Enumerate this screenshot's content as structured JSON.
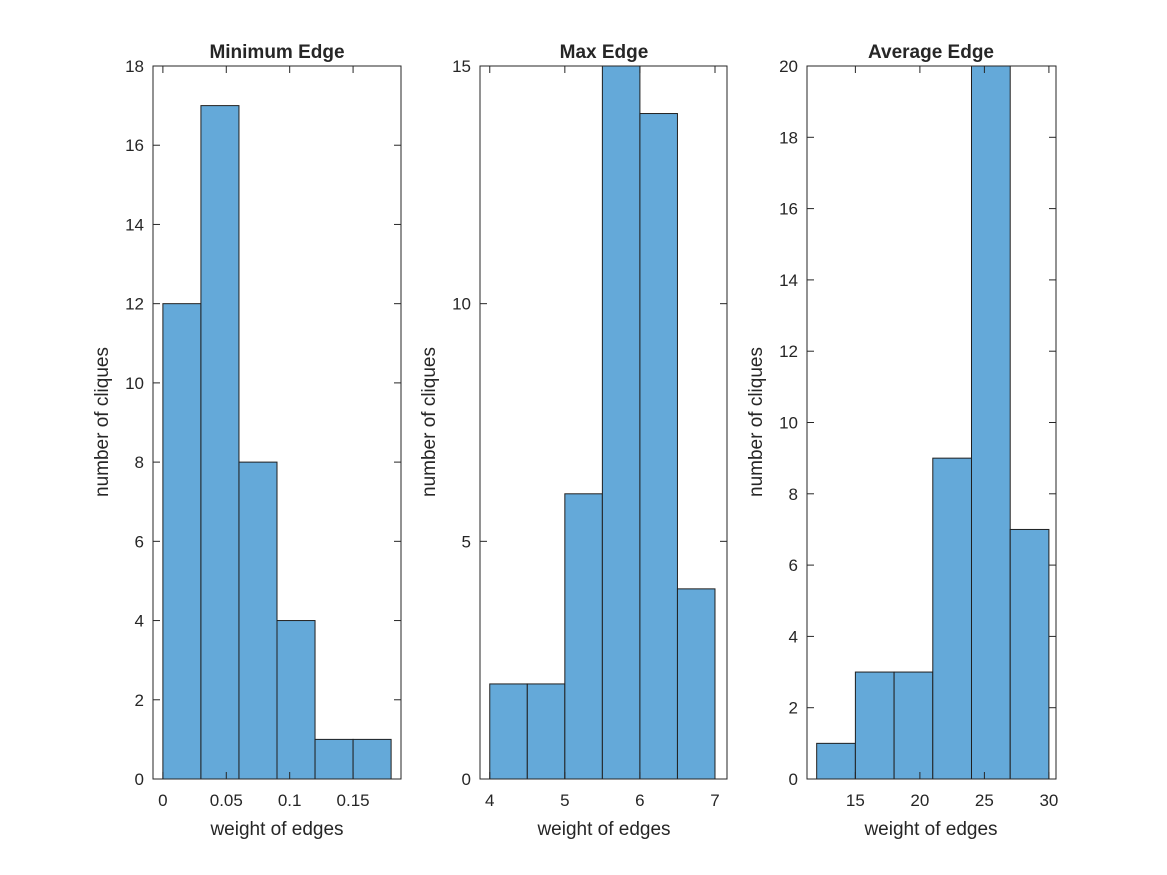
{
  "figure": {
    "background": "#ffffff"
  },
  "chart_data": [
    {
      "type": "bar",
      "title": "Minimum Edge",
      "xlabel": "weight of edges",
      "ylabel": "number of cliques",
      "bin_edges": [
        0,
        0.03,
        0.06,
        0.09,
        0.12,
        0.15,
        0.18
      ],
      "values": [
        12,
        17,
        8,
        4,
        1,
        1
      ],
      "xlim": [
        -0.0078,
        0.1878
      ],
      "ylim": [
        0,
        18
      ],
      "xticks": [
        0,
        0.05,
        0.1,
        0.15
      ],
      "xtick_labels": [
        "0",
        "0.05",
        "0.1",
        "0.15"
      ],
      "yticks": [
        0,
        2,
        4,
        6,
        8,
        10,
        12,
        14,
        16,
        18
      ],
      "ytick_labels": [
        "0",
        "2",
        "4",
        "6",
        "8",
        "10",
        "12",
        "14",
        "16",
        "18"
      ],
      "bar_color": "#64a9d9",
      "grid": false
    },
    {
      "type": "bar",
      "title": "Max Edge",
      "xlabel": "weight of edges",
      "ylabel": "number of cliques",
      "bin_edges": [
        4,
        4.5,
        5,
        5.5,
        6,
        6.5,
        7
      ],
      "values": [
        2,
        2,
        6,
        15,
        14,
        4
      ],
      "xlim": [
        3.87,
        7.16
      ],
      "ylim": [
        0,
        15
      ],
      "xticks": [
        4,
        5,
        6,
        7
      ],
      "xtick_labels": [
        "4",
        "5",
        "6",
        "7"
      ],
      "yticks": [
        0,
        5,
        10,
        15
      ],
      "ytick_labels": [
        "0",
        "5",
        "10",
        "15"
      ],
      "bar_color": "#64a9d9",
      "grid": false
    },
    {
      "type": "bar",
      "title": "Average Edge",
      "xlabel": "weight of edges",
      "ylabel": "number of cliques",
      "bin_edges": [
        12,
        15,
        18,
        21,
        24,
        27,
        30
      ],
      "values": [
        1,
        3,
        3,
        9,
        20,
        7
      ],
      "xlim": [
        11.25,
        30.55
      ],
      "ylim": [
        0,
        20
      ],
      "xticks": [
        15,
        20,
        25,
        30
      ],
      "xtick_labels": [
        "15",
        "20",
        "25",
        "30"
      ],
      "yticks": [
        0,
        2,
        4,
        6,
        8,
        10,
        12,
        14,
        16,
        18,
        20
      ],
      "ytick_labels": [
        "0",
        "2",
        "4",
        "6",
        "8",
        "10",
        "12",
        "14",
        "16",
        "18",
        "20"
      ],
      "bar_color": "#64a9d9",
      "grid": false
    }
  ]
}
